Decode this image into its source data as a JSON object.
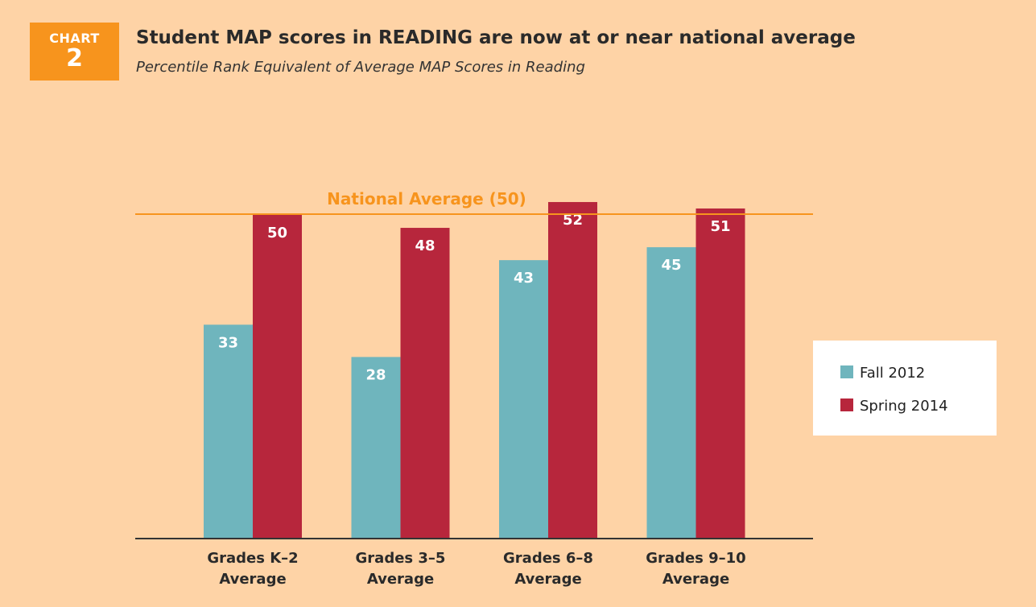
{
  "badge": {
    "label": "CHART",
    "number": "2"
  },
  "title_parts": {
    "before": "Student MAP scores in ",
    "emphasis": "READING",
    "after": " are now at or near national average"
  },
  "colors": {
    "fall": "#6FB5BD",
    "spring": "#B7263C",
    "reference": "#F7941D",
    "axis": "#333333",
    "badge": "#F7941D",
    "background": "#FED3A6"
  },
  "chart_data": {
    "type": "bar",
    "title": "Student MAP scores in READING are now at or near national average",
    "subtitle": "Percentile Rank Equivalent of Average MAP Scores in Reading",
    "categories": [
      [
        "Grades K–2",
        "Average"
      ],
      [
        "Grades 3–5",
        "Average"
      ],
      [
        "Grades 6–8",
        "Average"
      ],
      [
        "Grades 9–10",
        "Average"
      ]
    ],
    "series": [
      {
        "name": "Fall 2012",
        "values": [
          33,
          28,
          43,
          45
        ]
      },
      {
        "name": "Spring 2014",
        "values": [
          50,
          48,
          52,
          51
        ]
      }
    ],
    "reference_line": {
      "label": "National Average (50)",
      "value": 50
    },
    "ylim": [
      0,
      62
    ],
    "grid": false,
    "legend_position": "right"
  }
}
